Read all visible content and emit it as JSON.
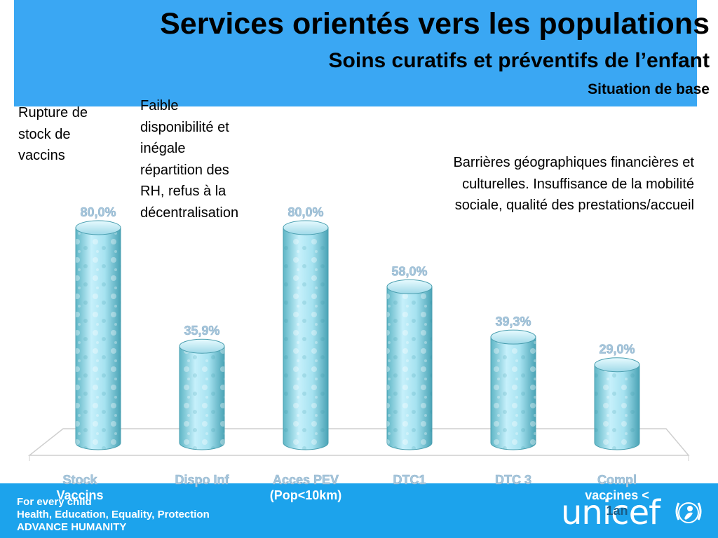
{
  "header": {
    "title": "Services orientés vers les populations",
    "subtitle": "Soins curatifs et préventifs de l’enfant",
    "subtitle2": "Situation de base"
  },
  "annotations": {
    "stock_lines": [
      "Rupture de",
      "stock de",
      "vaccins"
    ],
    "rh_lines": [
      "Faible",
      "disponibilité et",
      "inégale",
      "répartition des",
      "RH, refus à la",
      "décentralisation"
    ],
    "barriers_lines": [
      "Barrières géographiques financières et",
      "culturelles. Insuffisance de la mobilité",
      "sociale, qualité des prestations/accueil"
    ]
  },
  "footer": {
    "tagline_lines": [
      "For every child",
      "Health, Education, Equality, Protection",
      "ADVANCE HUMANITY"
    ],
    "logo": "unicef"
  },
  "colors": {
    "header_bg": "#3aa7f3",
    "footer_bg": "#1ca3ec",
    "bar_light": "#c6f0fb",
    "bar_dark": "#5fb6c6",
    "label_fill": "#a9c8dd"
  },
  "chart_data": {
    "type": "bar",
    "categories": [
      [
        "Stock",
        "Vaccins"
      ],
      [
        "Dispo Inf"
      ],
      [
        "Acces PEV",
        "(Pop<10km)"
      ],
      [
        "DTC1"
      ],
      [
        "DTC 3"
      ],
      [
        "Compl",
        "vaccines <",
        "1an"
      ]
    ],
    "values": [
      80.0,
      35.9,
      80.0,
      58.0,
      39.3,
      29.0
    ],
    "data_labels": [
      "80,0%",
      "35,9%",
      "80,0%",
      "58,0%",
      "39,3%",
      "29,0%"
    ],
    "ylim": [
      0,
      80
    ],
    "grid": false,
    "legend": "none",
    "style": "3d-cylinder"
  }
}
